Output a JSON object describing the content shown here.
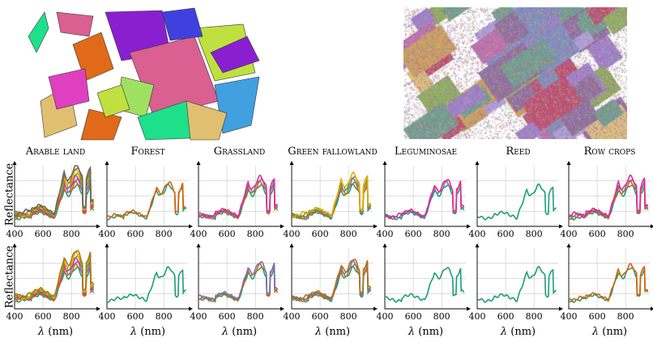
{
  "columns": [
    "Arable land",
    "Forest",
    "Grassland",
    "Green fallowland",
    "Leguminosae",
    "Reed",
    "Row crops"
  ],
  "ylabel": "Reflectance",
  "xlabel_symbol": "λ",
  "xlabel_unit": " (nm)",
  "colors": {
    "teal": "#1b9e77",
    "orange": "#d95f02",
    "purple": "#7570b3",
    "magenta": "#e7298a",
    "green": "#66a61e",
    "gold": "#e6ab02",
    "brown": "#a6761d",
    "grey": "#666666"
  },
  "map_colors": [
    "#1fe08a",
    "#e0c070",
    "#e06a1a",
    "#8a1fd0",
    "#d96090",
    "#c0e040",
    "#40a0e0",
    "#4040e0",
    "#a0e060",
    "#e040c0"
  ],
  "chart_data": {
    "type": "line",
    "x_ticks": [
      400,
      600,
      800
    ],
    "xlim": [
      400,
      970
    ],
    "y_ticks": "unlabeled",
    "grid": true,
    "rows": [
      [
        {
          "title": "Arable land",
          "series": [
            "teal",
            "orange",
            "purple",
            "magenta",
            "green",
            "gold",
            "brown",
            "grey"
          ]
        },
        {
          "title": "Forest",
          "series": [
            "teal",
            "orange"
          ]
        },
        {
          "title": "Grassland",
          "series": [
            "teal",
            "orange",
            "purple",
            "magenta"
          ]
        },
        {
          "title": "Green fallowland",
          "series": [
            "teal",
            "orange",
            "purple",
            "green",
            "gold"
          ]
        },
        {
          "title": "Leguminosae",
          "series": [
            "teal",
            "purple",
            "magenta"
          ]
        },
        {
          "title": "Reed",
          "series": [
            "teal"
          ]
        },
        {
          "title": "Row crops",
          "series": [
            "teal",
            "orange",
            "purple",
            "magenta"
          ]
        }
      ],
      [
        {
          "title": "Arable land",
          "series": [
            "teal",
            "orange",
            "purple",
            "magenta",
            "green",
            "gold",
            "brown"
          ]
        },
        {
          "title": "Forest",
          "series": [
            "teal"
          ]
        },
        {
          "title": "Grassland",
          "series": [
            "teal",
            "orange",
            "purple"
          ]
        },
        {
          "title": "Green fallowland",
          "series": [
            "teal",
            "orange",
            "purple",
            "brown"
          ]
        },
        {
          "title": "Leguminosae",
          "series": [
            "teal"
          ]
        },
        {
          "title": "Reed",
          "series": [
            "teal"
          ]
        },
        {
          "title": "Row crops",
          "series": [
            "teal",
            "orange"
          ]
        }
      ]
    ]
  }
}
